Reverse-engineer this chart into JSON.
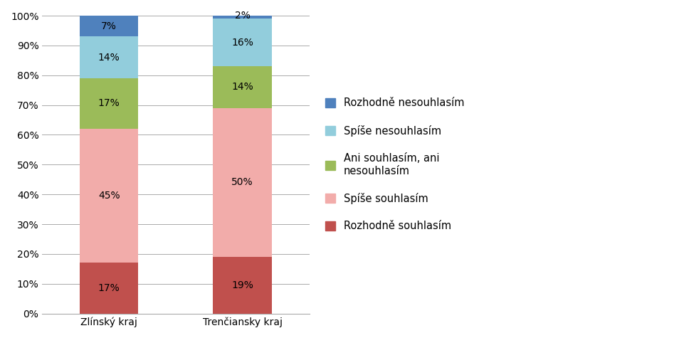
{
  "categories": [
    "Zlínský kraj",
    "Trenčiansky kraj"
  ],
  "series": [
    {
      "label": "Rozhodně souhlasím",
      "values": [
        17,
        19
      ],
      "color": "#C0504D"
    },
    {
      "label": "Spíše souhlasím",
      "values": [
        45,
        50
      ],
      "color": "#F2ACAA"
    },
    {
      "label": "Ani souhlasím, ani\nnesouhlasím",
      "values": [
        17,
        14
      ],
      "color": "#9BBB59"
    },
    {
      "label": "Spíše nesouhlasím",
      "values": [
        14,
        16
      ],
      "color": "#92CDDC"
    },
    {
      "label": "Rozhodně nesouhlasím",
      "values": [
        7,
        2
      ],
      "color": "#4F81BD"
    }
  ],
  "ylim": [
    0,
    1.0
  ],
  "yticks": [
    0.0,
    0.1,
    0.2,
    0.3,
    0.4,
    0.5,
    0.6,
    0.7,
    0.8,
    0.9,
    1.0
  ],
  "yticklabels": [
    "0%",
    "10%",
    "20%",
    "30%",
    "40%",
    "50%",
    "60%",
    "70%",
    "80%",
    "90%",
    "100%"
  ],
  "x_positions": [
    0.25,
    0.75
  ],
  "bar_width": 0.22,
  "xlim": [
    0.0,
    1.0
  ],
  "figsize": [
    9.47,
    4.75
  ],
  "dpi": 100,
  "legend_fontsize": 10.5,
  "tick_fontsize": 10,
  "label_fontsize": 10,
  "background_color": "#FFFFFF"
}
